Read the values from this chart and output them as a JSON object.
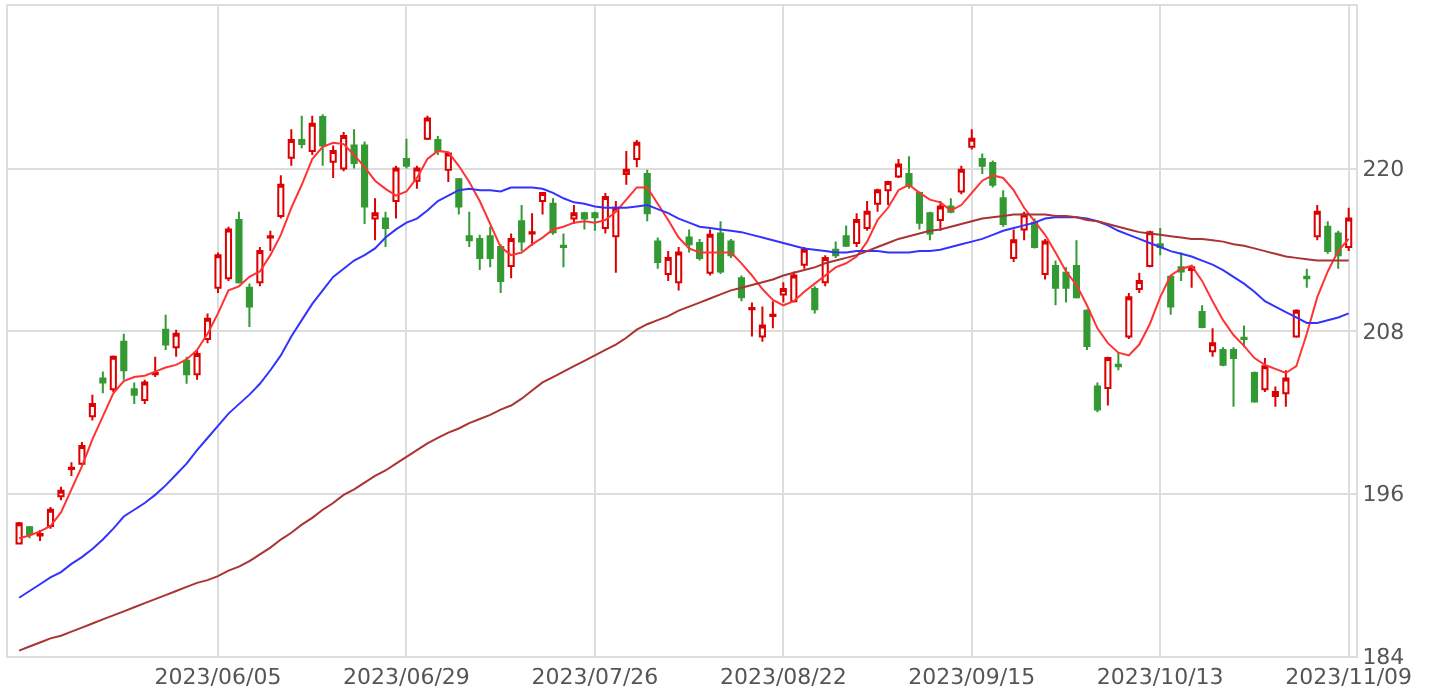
{
  "chart_data": {
    "type": "candlestick",
    "categories": [
      null,
      null,
      null,
      null,
      null,
      null,
      null,
      null,
      null,
      null,
      null,
      null,
      null,
      null,
      null,
      null,
      null,
      null,
      null,
      "2023/06/05",
      null,
      null,
      null,
      null,
      null,
      null,
      null,
      null,
      null,
      null,
      null,
      null,
      null,
      null,
      null,
      null,
      null,
      "2023/06/29",
      null,
      null,
      null,
      null,
      null,
      null,
      null,
      null,
      null,
      null,
      null,
      null,
      null,
      null,
      null,
      null,
      null,
      "2023/07/26",
      null,
      null,
      null,
      null,
      null,
      null,
      null,
      null,
      null,
      null,
      null,
      null,
      null,
      null,
      null,
      null,
      null,
      "2023/08/22",
      null,
      null,
      null,
      null,
      null,
      null,
      null,
      null,
      null,
      null,
      null,
      null,
      null,
      null,
      null,
      null,
      null,
      "2023/09/15",
      null,
      null,
      null,
      null,
      null,
      null,
      null,
      null,
      null,
      null,
      null,
      null,
      null,
      null,
      null,
      null,
      null,
      "2023/10/13",
      null,
      null,
      null,
      null,
      null,
      null,
      null,
      null,
      null,
      null,
      null,
      null,
      null,
      null,
      null,
      null,
      null,
      "2023/11/09"
    ],
    "ohlc": [
      [
        192.3,
        193.9,
        192.3,
        193.8
      ],
      [
        193.5,
        193.6,
        192.7,
        193.0
      ],
      [
        192.9,
        193.3,
        192.5,
        193.0
      ],
      [
        193.6,
        195.0,
        193.4,
        194.8
      ],
      [
        195.8,
        196.5,
        195.5,
        196.2
      ],
      [
        197.8,
        198.3,
        197.3,
        197.9
      ],
      [
        198.2,
        199.8,
        198.1,
        199.5
      ],
      [
        201.7,
        203.3,
        201.4,
        202.6
      ],
      [
        204.5,
        205.0,
        203.4,
        204.2
      ],
      [
        203.7,
        206.2,
        203.5,
        206.1
      ],
      [
        207.2,
        207.8,
        204.4,
        205.1
      ],
      [
        203.7,
        204.2,
        202.6,
        203.3
      ],
      [
        202.9,
        204.4,
        202.6,
        204.2
      ],
      [
        204.8,
        206.1,
        204.6,
        204.9
      ],
      [
        208.1,
        209.2,
        206.6,
        207.0
      ],
      [
        206.8,
        208.1,
        206.1,
        207.8
      ],
      [
        205.8,
        206.1,
        204.1,
        204.8
      ],
      [
        204.8,
        206.6,
        204.4,
        206.3
      ],
      [
        207.4,
        209.3,
        207.1,
        208.9
      ],
      [
        211.2,
        213.8,
        210.8,
        213.6
      ],
      [
        211.9,
        215.7,
        211.7,
        215.5
      ],
      [
        216.2,
        216.8,
        211.5,
        211.6
      ],
      [
        211.2,
        211.5,
        208.3,
        209.8
      ],
      [
        211.6,
        214.2,
        211.3,
        213.9
      ],
      [
        214.9,
        215.4,
        213.9,
        215.0
      ],
      [
        216.5,
        219.5,
        216.3,
        218.8
      ],
      [
        220.8,
        222.9,
        220.2,
        222.1
      ],
      [
        222.1,
        223.9,
        221.5,
        221.8
      ],
      [
        221.3,
        223.9,
        221.0,
        223.3
      ],
      [
        223.8,
        224.0,
        220.2,
        221.7
      ],
      [
        220.5,
        221.7,
        219.3,
        221.3
      ],
      [
        220.0,
        222.7,
        219.8,
        222.4
      ],
      [
        221.7,
        222.9,
        220.0,
        220.4
      ],
      [
        221.7,
        222.0,
        215.9,
        217.2
      ],
      [
        216.3,
        217.8,
        214.7,
        216.7
      ],
      [
        216.3,
        216.8,
        214.2,
        215.6
      ],
      [
        217.6,
        220.2,
        216.3,
        220.0
      ],
      [
        220.7,
        222.2,
        220.0,
        220.2
      ],
      [
        219.1,
        220.2,
        218.5,
        220.0
      ],
      [
        222.2,
        223.9,
        222.1,
        223.7
      ],
      [
        222.1,
        222.4,
        221.0,
        221.3
      ],
      [
        219.9,
        221.2,
        219.0,
        221.1
      ],
      [
        219.2,
        219.3,
        216.6,
        217.2
      ],
      [
        215.0,
        216.8,
        214.2,
        214.7
      ],
      [
        214.8,
        215.1,
        212.5,
        213.4
      ],
      [
        215.0,
        215.7,
        212.7,
        213.4
      ],
      [
        214.2,
        214.4,
        210.8,
        211.7
      ],
      [
        212.8,
        215.2,
        211.9,
        214.8
      ],
      [
        216.1,
        217.3,
        213.9,
        214.6
      ],
      [
        215.2,
        216.7,
        214.3,
        215.3
      ],
      [
        217.6,
        218.2,
        216.6,
        218.2
      ],
      [
        217.4,
        217.8,
        215.1,
        215.3
      ],
      [
        214.3,
        215.2,
        212.7,
        214.2
      ],
      [
        216.3,
        217.3,
        215.9,
        216.7
      ],
      [
        216.7,
        216.8,
        215.5,
        216.3
      ],
      [
        216.7,
        216.8,
        215.4,
        216.4
      ],
      [
        215.6,
        218.2,
        215.2,
        217.9
      ],
      [
        215.0,
        217.6,
        212.3,
        217.1
      ],
      [
        219.6,
        221.3,
        218.8,
        219.9
      ],
      [
        220.7,
        222.1,
        220.1,
        221.9
      ],
      [
        219.6,
        219.9,
        216.1,
        216.7
      ],
      [
        214.6,
        214.9,
        212.6,
        213.1
      ],
      [
        212.2,
        213.9,
        211.7,
        213.4
      ],
      [
        211.6,
        214.2,
        211.0,
        213.8
      ],
      [
        214.9,
        215.5,
        213.8,
        214.4
      ],
      [
        214.5,
        214.8,
        213.2,
        213.4
      ],
      [
        212.3,
        215.5,
        212.1,
        215.1
      ],
      [
        215.2,
        216.1,
        212.2,
        212.4
      ],
      [
        214.6,
        214.8,
        213.4,
        213.6
      ],
      [
        211.9,
        212.1,
        210.2,
        210.5
      ],
      [
        209.6,
        210.1,
        207.6,
        209.7
      ],
      [
        207.6,
        209.8,
        207.2,
        208.4
      ],
      [
        209.1,
        210.2,
        208.2,
        209.2
      ],
      [
        210.7,
        211.6,
        210.1,
        211.1
      ],
      [
        210.2,
        212.4,
        210.1,
        212.1
      ],
      [
        212.9,
        214.2,
        212.6,
        214.0
      ],
      [
        211.1,
        211.3,
        209.3,
        209.6
      ],
      [
        211.6,
        213.6,
        211.3,
        213.4
      ],
      [
        214.0,
        214.6,
        213.4,
        213.6
      ],
      [
        215.0,
        215.8,
        214.2,
        214.3
      ],
      [
        214.5,
        216.7,
        214.2,
        216.2
      ],
      [
        215.6,
        217.6,
        215.4,
        216.8
      ],
      [
        217.4,
        218.5,
        216.8,
        218.4
      ],
      [
        218.4,
        219.1,
        217.3,
        219.0
      ],
      [
        219.4,
        220.7,
        219.3,
        220.3
      ],
      [
        219.6,
        220.9,
        218.5,
        218.7
      ],
      [
        218.2,
        218.3,
        215.5,
        216.0
      ],
      [
        216.7,
        216.8,
        214.7,
        215.2
      ],
      [
        216.2,
        217.6,
        215.4,
        217.2
      ],
      [
        217.2,
        217.8,
        216.7,
        216.8
      ],
      [
        218.3,
        220.2,
        218.1,
        219.9
      ],
      [
        221.6,
        222.9,
        221.4,
        222.2
      ],
      [
        220.7,
        221.1,
        219.6,
        220.2
      ],
      [
        220.4,
        220.6,
        218.6,
        218.8
      ],
      [
        217.8,
        218.4,
        215.7,
        215.9
      ],
      [
        213.4,
        215.5,
        213.1,
        214.7
      ],
      [
        215.5,
        216.8,
        214.7,
        216.6
      ],
      [
        216.0,
        216.3,
        214.1,
        214.2
      ],
      [
        212.2,
        214.8,
        211.8,
        214.6
      ],
      [
        212.8,
        213.2,
        209.9,
        211.2
      ],
      [
        212.3,
        212.7,
        210.1,
        211.2
      ],
      [
        212.8,
        214.7,
        210.4,
        210.5
      ],
      [
        209.5,
        209.6,
        206.6,
        206.9
      ],
      [
        203.9,
        204.2,
        202.0,
        202.2
      ],
      [
        203.8,
        206.1,
        202.5,
        206.0
      ],
      [
        205.5,
        206.4,
        205.1,
        205.4
      ],
      [
        207.6,
        210.8,
        207.4,
        210.5
      ],
      [
        211.1,
        212.3,
        210.8,
        211.7
      ],
      [
        212.8,
        215.4,
        212.7,
        215.3
      ],
      [
        214.4,
        215.6,
        213.6,
        214.2
      ],
      [
        212.0,
        212.1,
        209.2,
        209.8
      ],
      [
        212.7,
        213.8,
        211.7,
        212.4
      ],
      [
        212.5,
        212.9,
        211.2,
        212.7
      ],
      [
        209.4,
        209.9,
        208.2,
        208.3
      ],
      [
        206.5,
        208.2,
        206.1,
        207.1
      ],
      [
        206.6,
        206.8,
        205.4,
        205.5
      ],
      [
        206.6,
        206.8,
        202.4,
        206.0
      ],
      [
        207.5,
        208.4,
        206.8,
        207.4
      ],
      [
        204.9,
        205.0,
        202.7,
        202.8
      ],
      [
        203.7,
        206.0,
        203.5,
        205.4
      ],
      [
        203.2,
        203.9,
        202.4,
        203.5
      ],
      [
        203.4,
        205.1,
        202.4,
        204.5
      ],
      [
        207.6,
        209.6,
        207.5,
        209.5
      ],
      [
        212.0,
        212.6,
        211.2,
        211.9
      ],
      [
        215.0,
        217.3,
        214.7,
        216.8
      ],
      [
        215.7,
        216.1,
        213.7,
        213.9
      ],
      [
        215.2,
        215.4,
        212.6,
        213.6
      ],
      [
        214.2,
        217.1,
        213.9,
        216.3
      ]
    ],
    "colors": [
      "#dd0000",
      "#339933",
      "#dd0000",
      "#dd0000",
      "#dd0000",
      "#dd0000",
      "#dd0000",
      "#dd0000",
      "#339933",
      "#dd0000",
      "#339933",
      "#339933",
      "#dd0000",
      "#dd0000",
      "#339933",
      "#dd0000",
      "#339933",
      "#dd0000",
      "#dd0000",
      "#dd0000",
      "#dd0000",
      "#339933",
      "#339933",
      "#dd0000",
      "#dd0000",
      "#dd0000",
      "#dd0000",
      "#339933",
      "#dd0000",
      "#339933",
      "#dd0000",
      "#dd0000",
      "#339933",
      "#339933",
      "#dd0000",
      "#339933",
      "#dd0000",
      "#339933",
      "#dd0000",
      "#dd0000",
      "#339933",
      "#dd0000",
      "#339933",
      "#339933",
      "#339933",
      "#339933",
      "#339933",
      "#dd0000",
      "#339933",
      "#dd0000",
      "#dd0000",
      "#339933",
      "#339933",
      "#dd0000",
      "#339933",
      "#339933",
      "#dd0000",
      "#dd0000",
      "#dd0000",
      "#dd0000",
      "#339933",
      "#339933",
      "#dd0000",
      "#dd0000",
      "#339933",
      "#339933",
      "#dd0000",
      "#339933",
      "#339933",
      "#339933",
      "#dd0000",
      "#dd0000",
      "#dd0000",
      "#dd0000",
      "#dd0000",
      "#dd0000",
      "#339933",
      "#dd0000",
      "#339933",
      "#339933",
      "#dd0000",
      "#dd0000",
      "#dd0000",
      "#dd0000",
      "#dd0000",
      "#339933",
      "#339933",
      "#339933",
      "#dd0000",
      "#339933",
      "#dd0000",
      "#dd0000",
      "#339933",
      "#339933",
      "#339933",
      "#dd0000",
      "#dd0000",
      "#339933",
      "#dd0000",
      "#339933",
      "#339933",
      "#339933",
      "#339933",
      "#339933",
      "#dd0000",
      "#339933",
      "#dd0000",
      "#dd0000",
      "#dd0000",
      "#339933",
      "#339933",
      "#339933",
      "#dd0000",
      "#339933",
      "#dd0000",
      "#339933",
      "#339933",
      "#339933",
      "#339933",
      "#dd0000",
      "#dd0000",
      "#dd0000",
      "#dd0000",
      "#339933",
      "#dd0000",
      "#339933",
      "#339933",
      "#dd0000"
    ],
    "series": [
      {
        "type": "line",
        "color": "#ff3333",
        "values": [
          192.7,
          192.9,
          193.2,
          193.6,
          194.6,
          196.3,
          198.0,
          200.0,
          201.7,
          203.4,
          204.3,
          204.6,
          204.7,
          205.0,
          205.3,
          205.5,
          205.9,
          206.6,
          207.8,
          209.3,
          211.0,
          211.3,
          212.0,
          212.4,
          213.6,
          215.1,
          217.1,
          218.8,
          220.7,
          221.6,
          221.9,
          221.8,
          221.0,
          220.1,
          219.1,
          218.5,
          218.0,
          218.3,
          219.3,
          220.7,
          221.3,
          221.2,
          220.2,
          219.0,
          217.6,
          215.9,
          214.2,
          213.6,
          213.8,
          214.4,
          214.9,
          215.5,
          215.7,
          216.0,
          216.1,
          216.0,
          216.2,
          216.8,
          217.7,
          218.6,
          218.6,
          217.4,
          216.2,
          214.9,
          214.1,
          213.8,
          213.8,
          213.8,
          213.8,
          213.0,
          212.1,
          211.1,
          210.3,
          209.9,
          210.2,
          210.9,
          211.5,
          212.1,
          212.7,
          213.0,
          213.5,
          214.6,
          216.2,
          217.1,
          218.4,
          218.8,
          218.2,
          217.7,
          217.5,
          216.9,
          217.3,
          218.2,
          219.1,
          219.5,
          219.3,
          218.4,
          217.1,
          216.1,
          215.1,
          213.8,
          212.4,
          211.4,
          209.9,
          208.2,
          207.1,
          206.4,
          206.2,
          207.0,
          208.5,
          210.5,
          212.1,
          212.6,
          212.8,
          211.7,
          210.2,
          208.8,
          207.7,
          206.9,
          206.0,
          205.5,
          205.2,
          204.9,
          205.4,
          207.8,
          210.5,
          212.4,
          213.9,
          214.8
        ]
      },
      {
        "type": "line",
        "color": "#3333ff",
        "values": [
          188.3,
          188.8,
          189.3,
          189.8,
          190.2,
          190.8,
          191.3,
          191.9,
          192.6,
          193.4,
          194.3,
          194.8,
          195.3,
          195.9,
          196.6,
          197.4,
          198.2,
          199.2,
          200.1,
          201.0,
          201.9,
          202.6,
          203.3,
          204.1,
          205.1,
          206.2,
          207.6,
          208.8,
          210.0,
          211.0,
          212.0,
          212.6,
          213.2,
          213.6,
          214.1,
          214.9,
          215.5,
          216.0,
          216.3,
          216.9,
          217.6,
          218.0,
          218.4,
          218.5,
          218.4,
          218.4,
          218.3,
          218.6,
          218.6,
          218.6,
          218.5,
          218.2,
          217.8,
          217.5,
          217.4,
          217.2,
          217.1,
          217.1,
          217.1,
          217.2,
          217.3,
          217.0,
          216.7,
          216.3,
          216.0,
          215.7,
          215.6,
          215.5,
          215.4,
          215.3,
          215.1,
          214.9,
          214.7,
          214.5,
          214.3,
          214.1,
          214.0,
          213.9,
          213.8,
          213.8,
          213.9,
          213.9,
          213.9,
          213.8,
          213.8,
          213.8,
          213.9,
          213.9,
          214.0,
          214.2,
          214.4,
          214.6,
          214.8,
          215.1,
          215.4,
          215.6,
          215.8,
          216.0,
          216.3,
          216.4,
          216.4,
          216.4,
          216.3,
          216.1,
          215.8,
          215.4,
          215.1,
          214.8,
          214.5,
          214.2,
          213.9,
          213.7,
          213.5,
          213.2,
          212.9,
          212.5,
          212.0,
          211.5,
          210.9,
          210.2,
          209.8,
          209.4,
          209.0,
          208.6,
          208.6,
          208.8,
          209.0,
          209.3
        ]
      },
      {
        "type": "line",
        "color": "#aa3333",
        "values": [
          184.4,
          184.7,
          185.0,
          185.3,
          185.5,
          185.8,
          186.1,
          186.4,
          186.7,
          187.0,
          187.3,
          187.6,
          187.9,
          188.2,
          188.5,
          188.8,
          189.1,
          189.4,
          189.6,
          189.9,
          190.3,
          190.6,
          191.0,
          191.5,
          192.0,
          192.6,
          193.1,
          193.7,
          194.2,
          194.8,
          195.3,
          195.9,
          196.3,
          196.8,
          197.3,
          197.7,
          198.2,
          198.7,
          199.2,
          199.7,
          200.1,
          200.5,
          200.8,
          201.2,
          201.5,
          201.8,
          202.2,
          202.5,
          203.0,
          203.6,
          204.2,
          204.6,
          205.0,
          205.4,
          205.8,
          206.2,
          206.6,
          207.0,
          207.5,
          208.1,
          208.5,
          208.8,
          209.1,
          209.5,
          209.8,
          210.1,
          210.4,
          210.7,
          211.0,
          211.2,
          211.4,
          211.6,
          211.8,
          212.1,
          212.3,
          212.5,
          212.7,
          213.0,
          213.2,
          213.4,
          213.6,
          213.9,
          214.2,
          214.5,
          214.8,
          215.0,
          215.2,
          215.4,
          215.5,
          215.7,
          215.9,
          216.1,
          216.3,
          216.4,
          216.5,
          216.6,
          216.6,
          216.6,
          216.6,
          216.5,
          216.5,
          216.4,
          216.2,
          216.1,
          215.9,
          215.7,
          215.5,
          215.3,
          215.2,
          215.1,
          215.0,
          214.9,
          214.8,
          214.8,
          214.7,
          214.6,
          214.4,
          214.3,
          214.1,
          213.9,
          213.7,
          213.5,
          213.4,
          213.3,
          213.2,
          213.2,
          213.2,
          213.2
        ]
      }
    ],
    "ylim": [
      184,
      232
    ],
    "yticks": [
      184,
      196,
      208,
      220
    ],
    "grid": true
  }
}
